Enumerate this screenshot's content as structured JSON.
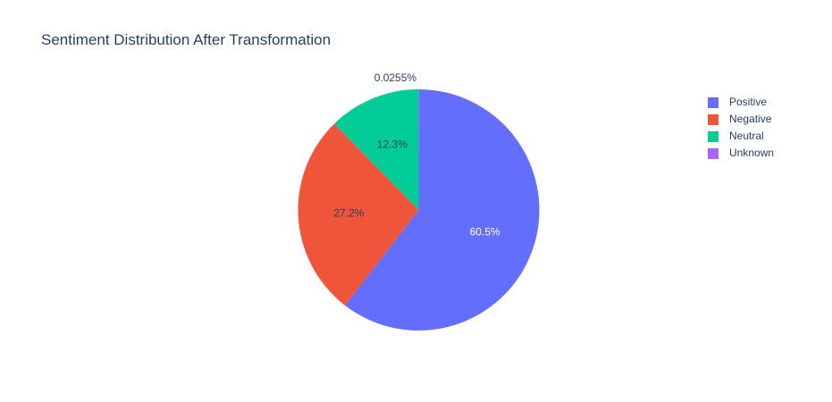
{
  "chart_data": {
    "type": "pie",
    "title": "Sentiment Distribution After Transformation",
    "labels": [
      "Positive",
      "Negative",
      "Neutral",
      "Unknown"
    ],
    "values": [
      60.5,
      27.2,
      12.3,
      0.0255
    ],
    "display_labels": [
      "60.5%",
      "27.2%",
      "12.3%",
      "0.0255%"
    ],
    "colors": [
      "#636efa",
      "#ef553b",
      "#00cc96",
      "#ab63fa"
    ],
    "legend": "top-right",
    "direction": "clockwise",
    "start": "top"
  }
}
